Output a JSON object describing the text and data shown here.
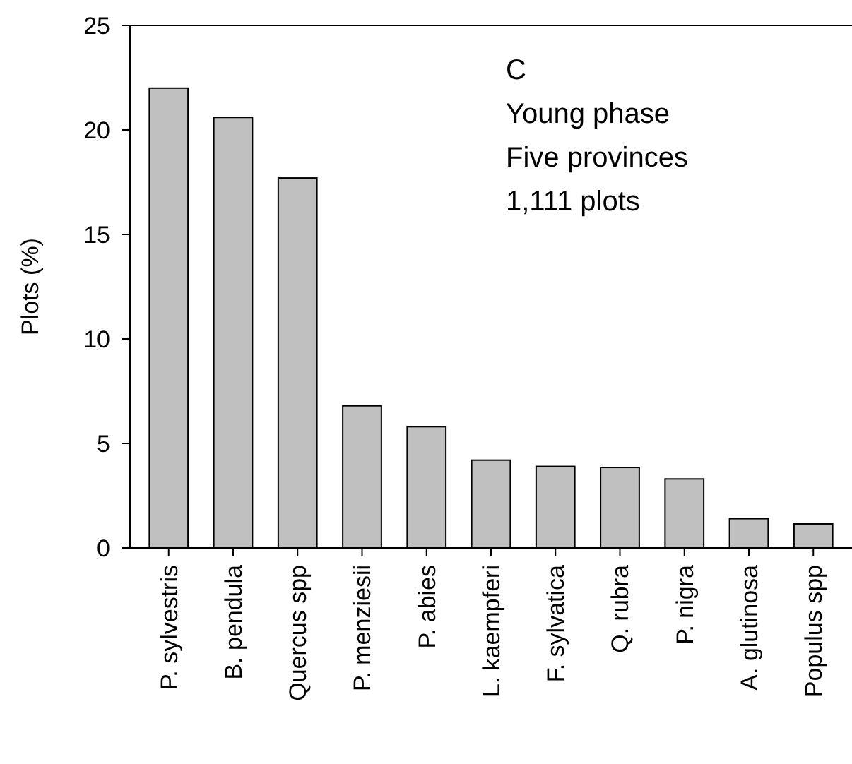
{
  "chart_data": {
    "type": "bar",
    "ylabel": "Plots (%)",
    "categories": [
      "P. sylvestris",
      "B. pendula",
      "Quercus spp",
      "P. menziesii",
      "P. abies",
      "L. kaempferi",
      "F. sylvatica",
      "Q. rubra",
      "P. nigra",
      "A. glutinosa",
      "Populus spp"
    ],
    "values": [
      22.0,
      20.6,
      17.7,
      6.8,
      5.8,
      4.2,
      3.9,
      3.85,
      3.3,
      1.4,
      1.15
    ],
    "color": "#c0c0c0",
    "ylim": [
      0,
      25
    ],
    "yticks": [
      0,
      5,
      10,
      15,
      20,
      25
    ],
    "annotations": [
      "C",
      "Young phase",
      "Five provinces",
      "1,111 plots"
    ]
  }
}
